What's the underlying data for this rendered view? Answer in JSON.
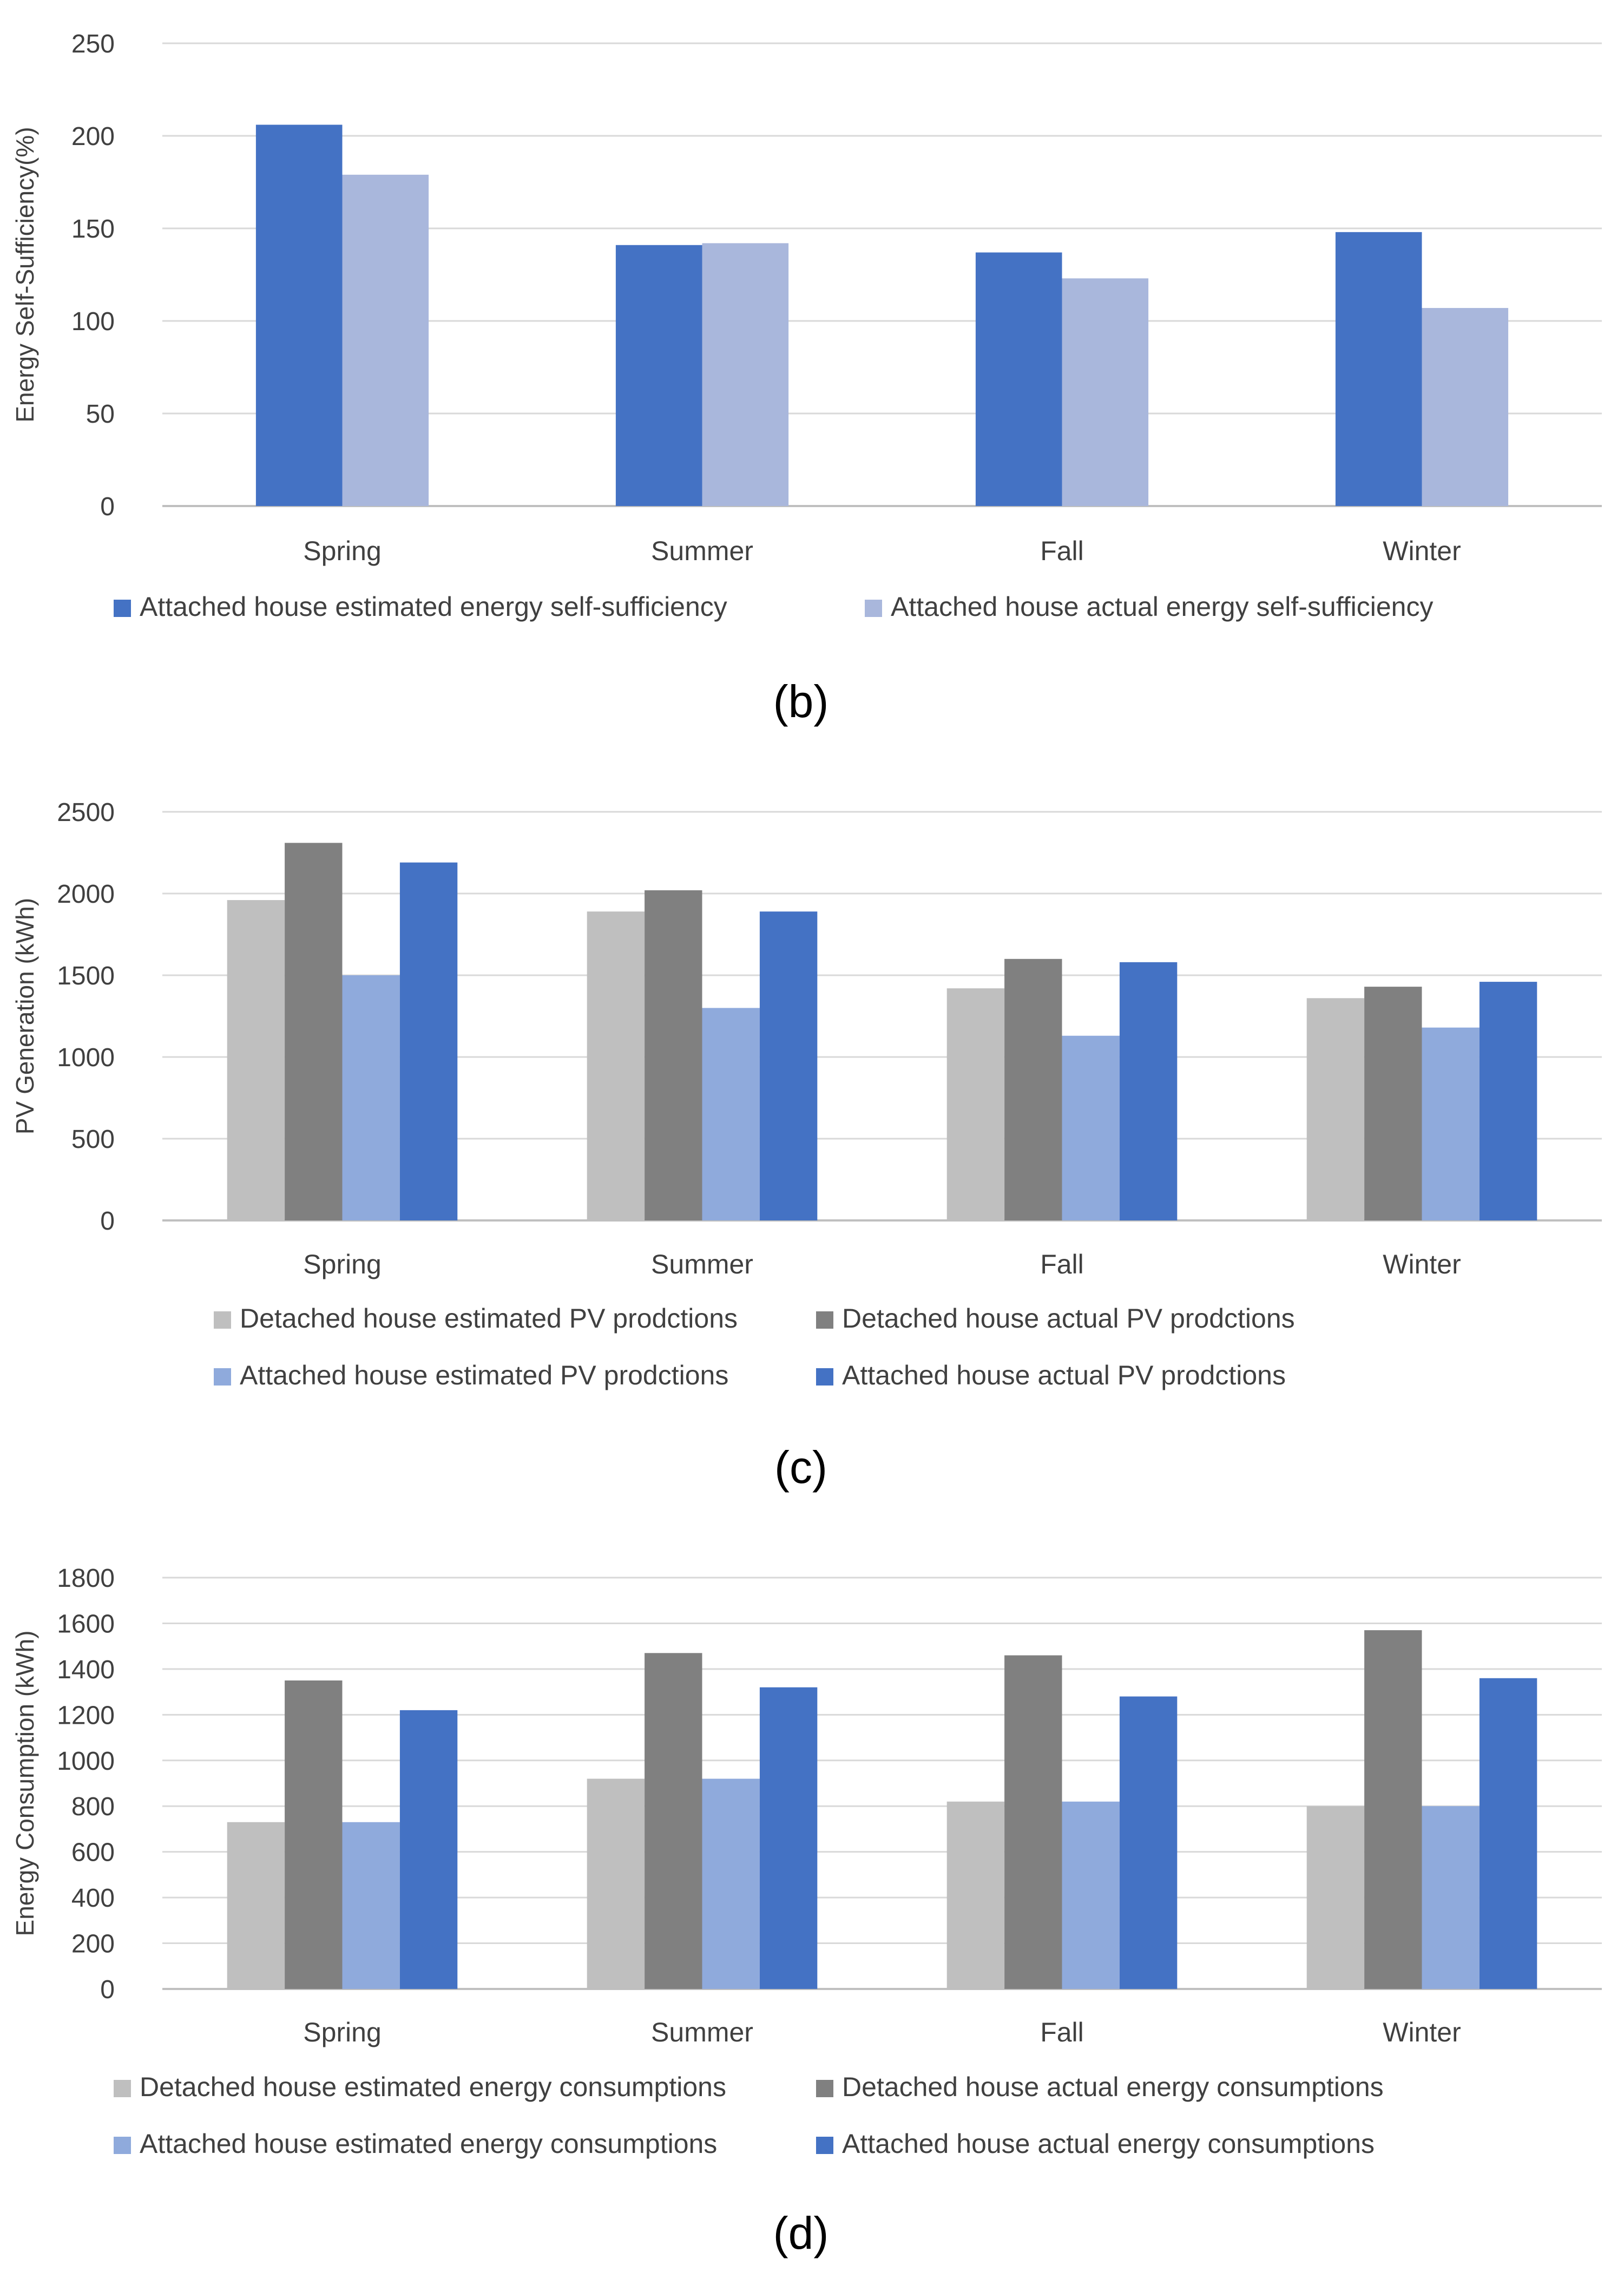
{
  "chart_data": [
    {
      "type": "bar",
      "panel_label": "(b)",
      "title": "",
      "categories": [
        "Spring",
        "Summer",
        "Fall",
        "Winter"
      ],
      "ylabel": "Energy Self-Sufficiency(%)",
      "xlabel": "",
      "ylim": [
        0,
        250
      ],
      "yticks": [
        0,
        50,
        100,
        150,
        200,
        250
      ],
      "grid": true,
      "legend_position": "bottom",
      "series": [
        {
          "name": "Attached house estimated energy self-sufficiency",
          "color": "#4472c4",
          "values": [
            206,
            141,
            137,
            148
          ]
        },
        {
          "name": "Attached house actual energy self-sufficiency",
          "color": "#a9b7dc",
          "values": [
            179,
            142,
            123,
            107
          ]
        }
      ]
    },
    {
      "type": "bar",
      "panel_label": "(c)",
      "title": "",
      "categories": [
        "Spring",
        "Summer",
        "Fall",
        "Winter"
      ],
      "ylabel": "PV Generation (kWh)",
      "xlabel": "",
      "ylim": [
        0,
        2500
      ],
      "yticks": [
        0,
        500,
        1000,
        1500,
        2000,
        2500
      ],
      "grid": true,
      "legend_position": "bottom",
      "series": [
        {
          "name": "Detached house estimated PV prodctions",
          "color": "#bfbfbf",
          "values": [
            1960,
            1890,
            1420,
            1360
          ]
        },
        {
          "name": "Detached house actual PV prodctions",
          "color": "#808080",
          "values": [
            2310,
            2020,
            1600,
            1430
          ]
        },
        {
          "name": "Attached house estimated PV prodctions",
          "color": "#8faadc",
          "values": [
            1500,
            1300,
            1130,
            1180
          ]
        },
        {
          "name": "Attached house actual PV prodctions",
          "color": "#4472c4",
          "values": [
            2190,
            1890,
            1580,
            1460
          ]
        }
      ]
    },
    {
      "type": "bar",
      "panel_label": "(d)",
      "title": "",
      "categories": [
        "Spring",
        "Summer",
        "Fall",
        "Winter"
      ],
      "ylabel": "Energy Consumption (kWh)",
      "xlabel": "",
      "ylim": [
        0,
        1800
      ],
      "yticks": [
        0,
        200,
        400,
        600,
        800,
        1000,
        1200,
        1400,
        1600,
        1800
      ],
      "grid": true,
      "legend_position": "bottom",
      "series": [
        {
          "name": "Detached house estimated energy consumptions",
          "color": "#bfbfbf",
          "values": [
            730,
            920,
            820,
            800
          ]
        },
        {
          "name": "Detached house actual energy consumptions",
          "color": "#808080",
          "values": [
            1350,
            1470,
            1460,
            1570
          ]
        },
        {
          "name": "Attached house estimated energy consumptions",
          "color": "#8faadc",
          "values": [
            730,
            920,
            820,
            800
          ]
        },
        {
          "name": "Attached house actual energy consumptions",
          "color": "#4472c4",
          "values": [
            1220,
            1320,
            1280,
            1360
          ]
        }
      ]
    }
  ]
}
